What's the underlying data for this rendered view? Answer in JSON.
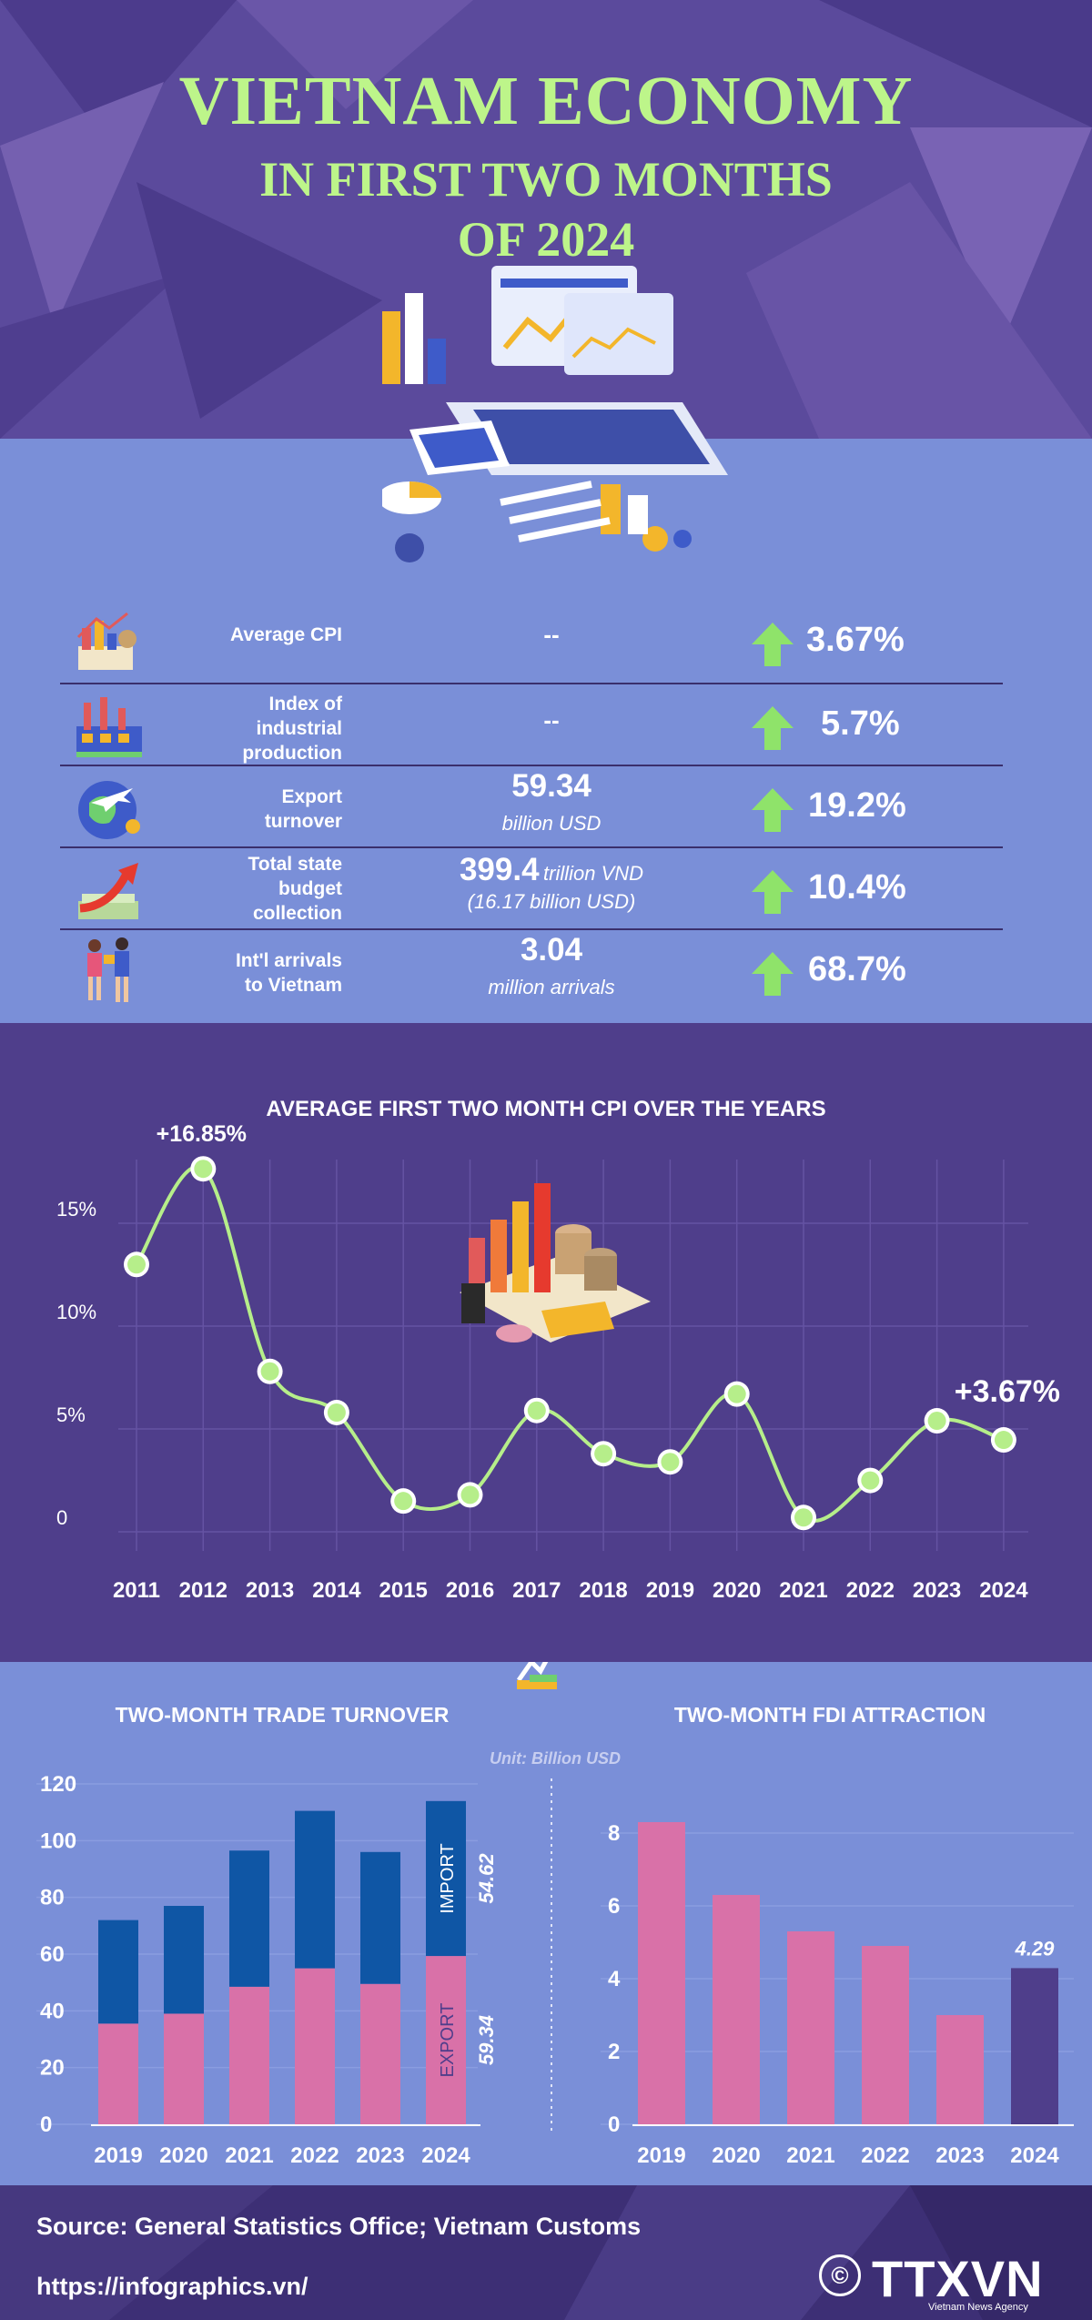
{
  "header": {
    "title_line1": "VIETNAM ECONOMY",
    "title_line2": "IN FIRST TWO MONTHS",
    "title_line3": "OF 2024",
    "colors": {
      "title": "#bdf58a",
      "bg": "#5b4a9c"
    }
  },
  "stats": [
    {
      "icon": "cpi-illustration-icon",
      "label_lines": [
        "Average CPI"
      ],
      "value": "--",
      "value_sub": "",
      "value_unit": "",
      "change": "3.67%"
    },
    {
      "icon": "factory-icon",
      "label_lines": [
        "Index of",
        "industrial",
        "production"
      ],
      "value": "--",
      "value_sub": "",
      "value_unit": "",
      "change": "5.7%"
    },
    {
      "icon": "globe-plane-icon",
      "label_lines": [
        "Export",
        "turnover"
      ],
      "value": "59.34",
      "value_sub": "billion USD",
      "value_unit": "",
      "change": "19.2%"
    },
    {
      "icon": "money-growth-icon",
      "label_lines": [
        "Total state",
        "budget",
        "collection"
      ],
      "value": "399.4",
      "value_unit": "trillion VND",
      "value_sub": "(16.17 billion USD)",
      "change": "10.4%"
    },
    {
      "icon": "tourists-icon",
      "label_lines": [
        "Int'l arrivals",
        "to Vietnam"
      ],
      "value": "3.04",
      "value_sub": "million arrivals",
      "value_unit": "",
      "change": "68.7%"
    }
  ],
  "chart_data": [
    {
      "type": "line",
      "title": "AVERAGE FIRST TWO MONTH CPI OVER THE YEARS",
      "x": [
        "2011",
        "2012",
        "2013",
        "2014",
        "2015",
        "2016",
        "2017",
        "2018",
        "2019",
        "2020",
        "2021",
        "2022",
        "2023",
        "2024"
      ],
      "series": [
        {
          "values": [
            12.2,
            16.85,
            7.0,
            5.0,
            0.7,
            1.0,
            5.1,
            3.0,
            2.6,
            5.9,
            -0.1,
            1.7,
            4.6,
            3.67
          ]
        }
      ],
      "yticks": [
        "0",
        "5%",
        "10%",
        "15%"
      ],
      "ylim": [
        0,
        15
      ],
      "annotations": [
        {
          "x": "2012",
          "text": "+16.85%"
        },
        {
          "x": "2024",
          "text": "+3.67%"
        }
      ],
      "grid": true,
      "colors": {
        "line": "#b6ee8a",
        "marker": "#b6ee8a"
      }
    },
    {
      "type": "bar",
      "title": "TWO-MONTH TRADE TURNOVER",
      "categories": [
        "2019",
        "2020",
        "2021",
        "2022",
        "2023",
        "2024"
      ],
      "series": [
        {
          "name": "EXPORT",
          "values": [
            35.5,
            39.0,
            48.5,
            55.0,
            49.5,
            59.34
          ]
        },
        {
          "name": "IMPORT",
          "values": [
            36.5,
            38.0,
            48.0,
            55.5,
            46.5,
            54.62
          ]
        }
      ],
      "stacked": true,
      "ylim": [
        0,
        120
      ],
      "yticks": [
        "0",
        "20",
        "40",
        "60",
        "80",
        "100",
        "120"
      ],
      "value_labels": {
        "EXPORT": "59.34",
        "IMPORT": "54.62"
      },
      "unit": "Unit: Billion USD",
      "colors": {
        "EXPORT": "#d971a8",
        "IMPORT": "#0f56a5"
      }
    },
    {
      "type": "bar",
      "title": "TWO-MONTH FDI ATTRACTION",
      "categories": [
        "2019",
        "2020",
        "2021",
        "2022",
        "2023",
        "2024"
      ],
      "values": [
        8.3,
        6.3,
        5.3,
        4.9,
        3.0,
        4.29
      ],
      "ylim": [
        0,
        8
      ],
      "yticks": [
        "0",
        "2",
        "4",
        "6",
        "8"
      ],
      "value_labels": {
        "2024": "4.29"
      },
      "colors": {
        "bar": "#d971a8",
        "highlight": "#4f3e8b"
      }
    }
  ],
  "footer": {
    "source": "Source: General Statistics Office; Vietnam Customs",
    "url": "https://infographics.vn/",
    "logo": "TTXVN",
    "logo_sub": "Vietnam News Agency",
    "copyright": "©"
  }
}
